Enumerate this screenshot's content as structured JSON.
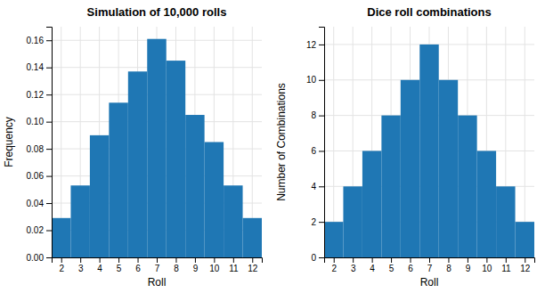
{
  "chart_data": [
    {
      "type": "bar",
      "title": "Simulation of 10,000 rolls",
      "xlabel": "Roll",
      "ylabel": "Frequency",
      "x": [
        2,
        3,
        4,
        5,
        6,
        7,
        8,
        9,
        10,
        11,
        12
      ],
      "values": [
        0.029,
        0.053,
        0.09,
        0.114,
        0.137,
        0.161,
        0.145,
        0.105,
        0.085,
        0.053,
        0.029
      ],
      "color": "#1f77b4",
      "xlim": [
        1.5,
        12.5
      ],
      "xticks": [
        2,
        3,
        4,
        5,
        6,
        7,
        8,
        9,
        10,
        11,
        12
      ],
      "ylim": [
        0,
        0.17
      ],
      "yticks": [
        {
          "value": 0.0,
          "label": "0.00"
        },
        {
          "value": 0.02,
          "label": "0.02"
        },
        {
          "value": 0.04,
          "label": "0.04"
        },
        {
          "value": 0.06,
          "label": "0.06"
        },
        {
          "value": 0.08,
          "label": "0.08"
        },
        {
          "value": 0.1,
          "label": "0.10"
        },
        {
          "value": 0.12,
          "label": "0.12"
        },
        {
          "value": 0.14,
          "label": "0.14"
        },
        {
          "value": 0.16,
          "label": "0.16"
        }
      ],
      "grid": true
    },
    {
      "type": "bar",
      "title": "Dice roll combinations",
      "xlabel": "Roll",
      "ylabel": "Number of Combinations",
      "x": [
        2,
        3,
        4,
        5,
        6,
        7,
        8,
        9,
        10,
        11,
        12
      ],
      "values": [
        2,
        4,
        6,
        8,
        10,
        12,
        10,
        8,
        6,
        4,
        2
      ],
      "color": "#1f77b4",
      "xlim": [
        1.5,
        12.5
      ],
      "xticks": [
        2,
        3,
        4,
        5,
        6,
        7,
        8,
        9,
        10,
        11,
        12
      ],
      "ylim": [
        0,
        13
      ],
      "yticks": [
        0,
        2,
        4,
        6,
        8,
        10,
        12
      ],
      "grid": true
    }
  ]
}
